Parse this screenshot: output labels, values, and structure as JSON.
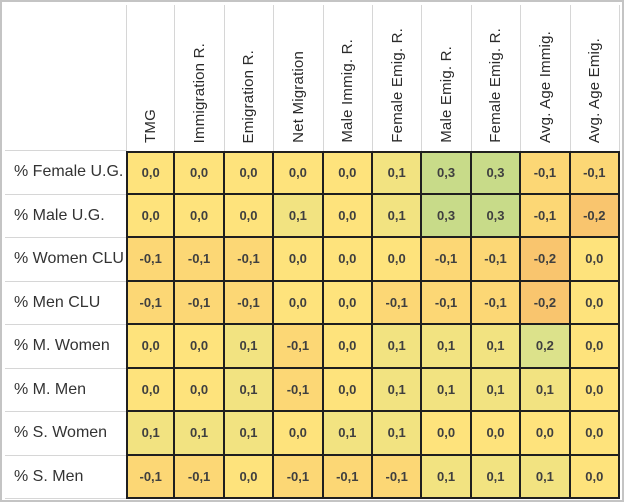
{
  "chart_data": {
    "type": "heatmap",
    "title": "",
    "columns": [
      "TMG",
      "Immigration R.",
      "Emigration R.",
      "Net Migration",
      "Male Immig. R.",
      "Female Emig. R.",
      "Male Emig. R.",
      "Female Emig. R.",
      "Avg. Age Immig.",
      "Avg. Age Emig."
    ],
    "rows": [
      "% Female U.G.",
      "% Male U.G.",
      "% Women CLU",
      "% Men CLU",
      "% M. Women",
      "% M. Men",
      "% S. Women",
      "% S. Men"
    ],
    "values": [
      [
        0.0,
        0.0,
        0.0,
        0.0,
        0.0,
        0.1,
        0.3,
        0.3,
        -0.1,
        -0.1
      ],
      [
        0.0,
        0.0,
        0.0,
        0.1,
        0.0,
        0.1,
        0.3,
        0.3,
        -0.1,
        -0.2
      ],
      [
        -0.1,
        -0.1,
        -0.1,
        0.0,
        0.0,
        0.0,
        -0.1,
        -0.1,
        -0.2,
        0.0
      ],
      [
        -0.1,
        -0.1,
        -0.1,
        0.0,
        0.0,
        -0.1,
        -0.1,
        -0.1,
        -0.2,
        0.0
      ],
      [
        0.0,
        0.0,
        0.1,
        -0.1,
        0.0,
        0.1,
        0.1,
        0.1,
        0.2,
        0.0
      ],
      [
        0.0,
        0.0,
        0.1,
        -0.1,
        0.0,
        0.1,
        0.1,
        0.1,
        0.1,
        0.0
      ],
      [
        0.1,
        0.1,
        0.1,
        0.0,
        0.1,
        0.1,
        0.0,
        0.0,
        0.0,
        0.0
      ],
      [
        -0.1,
        -0.1,
        0.0,
        -0.1,
        -0.1,
        -0.1,
        0.1,
        0.1,
        0.1,
        0.0
      ]
    ],
    "value_decimal_separator": ",",
    "legend": "none",
    "color_scale": {
      "-0.2": "#f9c56e",
      "-0.1": "#fcd775",
      "0.0": "#fee37c",
      "0.1": "#f2e381",
      "0.2": "#dce28b",
      "0.3": "#c8db89"
    },
    "colors": {
      "cell_border": "#1f1f1f",
      "grid_line": "#d6d6d6",
      "frame": "#c4c4c4",
      "value_text": "#3f3f3f",
      "label_text": "#333333",
      "background": "#ffffff"
    }
  }
}
